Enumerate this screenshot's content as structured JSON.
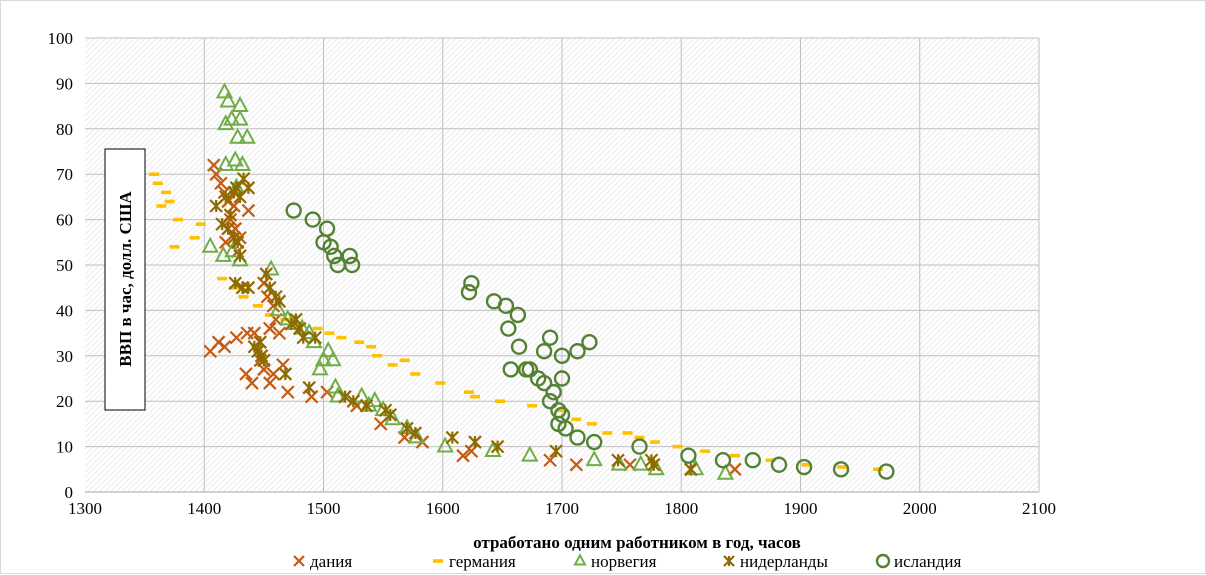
{
  "chart_data": {
    "type": "scatter",
    "xlabel": "отработано одним работником в год, часов",
    "ylabel": "ВВП в час, долл. США",
    "xlim": [
      1300,
      2100
    ],
    "ylim": [
      0,
      100
    ],
    "x_ticks": [
      "1300",
      "1400",
      "1500",
      "1600",
      "1700",
      "1800",
      "1900",
      "2000",
      "2100"
    ],
    "y_ticks": [
      "0",
      "10",
      "20",
      "30",
      "40",
      "50",
      "60",
      "70",
      "80",
      "90",
      "100"
    ],
    "grid": true,
    "legend_position": "bottom",
    "series": [
      {
        "name": "дания",
        "marker": "x",
        "color": "#c55a11",
        "points": [
          [
            1408,
            72
          ],
          [
            1410,
            70
          ],
          [
            1414,
            68
          ],
          [
            1417,
            66
          ],
          [
            1420,
            64
          ],
          [
            1422,
            60
          ],
          [
            1426,
            58
          ],
          [
            1430,
            56
          ],
          [
            1418,
            55
          ],
          [
            1425,
            63
          ],
          [
            1437,
            62
          ],
          [
            1428,
            53
          ],
          [
            1405,
            31
          ],
          [
            1412,
            33
          ],
          [
            1417,
            32
          ],
          [
            1427,
            34
          ],
          [
            1436,
            35
          ],
          [
            1442,
            35
          ],
          [
            1435,
            26
          ],
          [
            1440,
            24
          ],
          [
            1447,
            29
          ],
          [
            1450,
            27
          ],
          [
            1455,
            24
          ],
          [
            1458,
            26
          ],
          [
            1450,
            46
          ],
          [
            1453,
            43
          ],
          [
            1458,
            41
          ],
          [
            1455,
            36
          ],
          [
            1460,
            38
          ],
          [
            1463,
            35
          ],
          [
            1466,
            28
          ],
          [
            1470,
            22
          ],
          [
            1490,
            21
          ],
          [
            1503,
            22
          ],
          [
            1528,
            19
          ],
          [
            1548,
            15
          ],
          [
            1568,
            12
          ],
          [
            1583,
            11
          ],
          [
            1617,
            8
          ],
          [
            1624,
            9
          ],
          [
            1690,
            7
          ],
          [
            1712,
            6
          ],
          [
            1757,
            6
          ],
          [
            1808,
            5
          ],
          [
            1845,
            5
          ]
        ]
      },
      {
        "name": "германия",
        "marker": "dash",
        "color": "#ffc000",
        "points": [
          [
            1358,
            70
          ],
          [
            1361,
            68
          ],
          [
            1364,
            63
          ],
          [
            1368,
            66
          ],
          [
            1371,
            64
          ],
          [
            1375,
            54
          ],
          [
            1378,
            60
          ],
          [
            1392,
            56
          ],
          [
            1397,
            59
          ],
          [
            1415,
            47
          ],
          [
            1425,
            45
          ],
          [
            1433,
            43
          ],
          [
            1445,
            41
          ],
          [
            1455,
            39
          ],
          [
            1468,
            38
          ],
          [
            1480,
            37
          ],
          [
            1495,
            36
          ],
          [
            1505,
            35
          ],
          [
            1515,
            34
          ],
          [
            1530,
            33
          ],
          [
            1540,
            32
          ],
          [
            1545,
            30
          ],
          [
            1558,
            28
          ],
          [
            1568,
            29
          ],
          [
            1577,
            26
          ],
          [
            1598,
            24
          ],
          [
            1622,
            22
          ],
          [
            1627,
            21
          ],
          [
            1648,
            20
          ],
          [
            1675,
            19
          ],
          [
            1700,
            18
          ],
          [
            1712,
            16
          ],
          [
            1725,
            15
          ],
          [
            1738,
            13
          ],
          [
            1755,
            13
          ],
          [
            1765,
            12
          ],
          [
            1778,
            11
          ],
          [
            1797,
            10
          ],
          [
            1820,
            9
          ],
          [
            1845,
            8
          ],
          [
            1875,
            7
          ],
          [
            1905,
            6
          ],
          [
            1935,
            5.5
          ],
          [
            1965,
            5
          ]
        ]
      },
      {
        "name": "норвегия",
        "marker": "triangle",
        "color": "#70ad47",
        "points": [
          [
            1417,
            88
          ],
          [
            1420,
            86
          ],
          [
            1430,
            85
          ],
          [
            1418,
            81
          ],
          [
            1423,
            82
          ],
          [
            1430,
            82
          ],
          [
            1428,
            78
          ],
          [
            1436,
            78
          ],
          [
            1418,
            72
          ],
          [
            1426,
            73
          ],
          [
            1432,
            72
          ],
          [
            1427,
            67
          ],
          [
            1405,
            54
          ],
          [
            1416,
            52
          ],
          [
            1424,
            53
          ],
          [
            1430,
            51
          ],
          [
            1456,
            49
          ],
          [
            1462,
            40
          ],
          [
            1470,
            38
          ],
          [
            1476,
            37
          ],
          [
            1482,
            36
          ],
          [
            1488,
            35
          ],
          [
            1492,
            33
          ],
          [
            1497,
            27
          ],
          [
            1500,
            29
          ],
          [
            1504,
            31
          ],
          [
            1508,
            29
          ],
          [
            1512,
            21
          ],
          [
            1510,
            23
          ],
          [
            1532,
            21
          ],
          [
            1538,
            19
          ],
          [
            1543,
            20
          ],
          [
            1550,
            18
          ],
          [
            1558,
            16
          ],
          [
            1570,
            14
          ],
          [
            1578,
            12
          ],
          [
            1602,
            10
          ],
          [
            1642,
            9
          ],
          [
            1673,
            8
          ],
          [
            1727,
            7
          ],
          [
            1748,
            6
          ],
          [
            1766,
            6
          ],
          [
            1779,
            5
          ],
          [
            1812,
            5
          ],
          [
            1837,
            4
          ]
        ]
      },
      {
        "name": "нидерланды",
        "marker": "asterisk",
        "color": "#8e6b00",
        "points": [
          [
            1410,
            63
          ],
          [
            1415,
            59
          ],
          [
            1418,
            65
          ],
          [
            1422,
            61
          ],
          [
            1425,
            66
          ],
          [
            1427,
            67
          ],
          [
            1430,
            65
          ],
          [
            1433,
            69
          ],
          [
            1437,
            67
          ],
          [
            1420,
            58
          ],
          [
            1425,
            56
          ],
          [
            1428,
            55
          ],
          [
            1430,
            52
          ],
          [
            1426,
            46
          ],
          [
            1432,
            45
          ],
          [
            1437,
            45
          ],
          [
            1442,
            32
          ],
          [
            1445,
            31
          ],
          [
            1448,
            30
          ],
          [
            1450,
            29
          ],
          [
            1447,
            33
          ],
          [
            1452,
            48
          ],
          [
            1455,
            45
          ],
          [
            1460,
            43
          ],
          [
            1463,
            42
          ],
          [
            1468,
            26
          ],
          [
            1473,
            37
          ],
          [
            1477,
            38
          ],
          [
            1480,
            36
          ],
          [
            1483,
            34
          ],
          [
            1488,
            23
          ],
          [
            1493,
            34
          ],
          [
            1518,
            21
          ],
          [
            1525,
            20
          ],
          [
            1536,
            19
          ],
          [
            1552,
            18
          ],
          [
            1556,
            17
          ],
          [
            1570,
            14
          ],
          [
            1577,
            13
          ],
          [
            1608,
            12
          ],
          [
            1627,
            11
          ],
          [
            1646,
            10
          ],
          [
            1695,
            9
          ],
          [
            1747,
            7
          ],
          [
            1775,
            7
          ],
          [
            1777,
            6
          ],
          [
            1808,
            5
          ]
        ]
      },
      {
        "name": "исландия",
        "marker": "circle",
        "color": "#548235",
        "points": [
          [
            1475,
            62
          ],
          [
            1491,
            60
          ],
          [
            1503,
            58
          ],
          [
            1500,
            55
          ],
          [
            1506,
            54
          ],
          [
            1509,
            52
          ],
          [
            1512,
            50
          ],
          [
            1522,
            52
          ],
          [
            1524,
            50
          ],
          [
            1624,
            46
          ],
          [
            1622,
            44
          ],
          [
            1643,
            42
          ],
          [
            1653,
            41
          ],
          [
            1663,
            39
          ],
          [
            1655,
            36
          ],
          [
            1664,
            32
          ],
          [
            1657,
            27
          ],
          [
            1670,
            27
          ],
          [
            1685,
            31
          ],
          [
            1690,
            34
          ],
          [
            1713,
            31
          ],
          [
            1723,
            33
          ],
          [
            1700,
            30
          ],
          [
            1673,
            27
          ],
          [
            1685,
            24
          ],
          [
            1690,
            20
          ],
          [
            1693,
            22
          ],
          [
            1697,
            18
          ],
          [
            1697,
            15
          ],
          [
            1700,
            17
          ],
          [
            1703,
            14
          ],
          [
            1713,
            12
          ],
          [
            1727,
            11
          ],
          [
            1765,
            10
          ],
          [
            1806,
            8
          ],
          [
            1835,
            7
          ],
          [
            1860,
            7
          ],
          [
            1882,
            6
          ],
          [
            1903,
            5.5
          ],
          [
            1934,
            5
          ],
          [
            1972,
            4.5
          ],
          [
            1680,
            25
          ],
          [
            1700,
            25
          ]
        ]
      }
    ]
  }
}
